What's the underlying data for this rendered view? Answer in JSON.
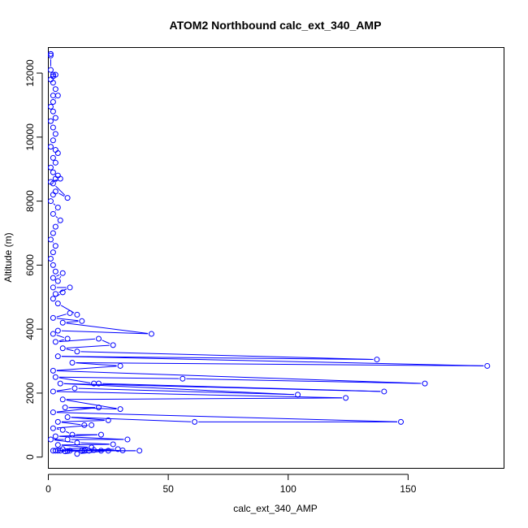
{
  "chart_data": {
    "type": "line",
    "title": "ATOM2 Northbound calc_ext_340_AMP",
    "xlabel": "calc_ext_340_AMP",
    "ylabel": "Altitude (m)",
    "xlim": [
      0,
      190
    ],
    "ylim": [
      -350,
      12800
    ],
    "x_ticks": [
      0,
      50,
      100,
      150
    ],
    "y_ticks": [
      0,
      2000,
      4000,
      6000,
      8000,
      10000,
      12000
    ],
    "grid": false,
    "series_color": "#0000ff",
    "marker": "open-circle",
    "points": [
      [
        1,
        12600
      ],
      [
        1,
        12550
      ],
      [
        1,
        12100
      ],
      [
        2,
        11950
      ],
      [
        2,
        11900
      ],
      [
        3,
        11950
      ],
      [
        1,
        11800
      ],
      [
        2,
        11700
      ],
      [
        3,
        11500
      ],
      [
        2,
        11300
      ],
      [
        4,
        11300
      ],
      [
        2,
        11100
      ],
      [
        1,
        10950
      ],
      [
        2,
        10800
      ],
      [
        3,
        10600
      ],
      [
        1,
        10500
      ],
      [
        2,
        10300
      ],
      [
        3,
        10100
      ],
      [
        2,
        9900
      ],
      [
        1,
        9700
      ],
      [
        3,
        9600
      ],
      [
        4,
        9500
      ],
      [
        2,
        9350
      ],
      [
        3,
        9200
      ],
      [
        1,
        9050
      ],
      [
        2,
        8900
      ],
      [
        4,
        8800
      ],
      [
        3,
        8700
      ],
      [
        1,
        8600
      ],
      [
        5,
        8700
      ],
      [
        2,
        8550
      ],
      [
        8,
        8100
      ],
      [
        3,
        8300
      ],
      [
        2,
        8200
      ],
      [
        1,
        8000
      ],
      [
        4,
        7800
      ],
      [
        2,
        7600
      ],
      [
        5,
        7400
      ],
      [
        3,
        7200
      ],
      [
        2,
        7000
      ],
      [
        1,
        6800
      ],
      [
        3,
        6600
      ],
      [
        2,
        6400
      ],
      [
        1,
        6200
      ],
      [
        2,
        6000
      ],
      [
        3,
        5800
      ],
      [
        2,
        5600
      ],
      [
        6,
        5750
      ],
      [
        4,
        5500
      ],
      [
        2,
        5300
      ],
      [
        9,
        5300
      ],
      [
        3,
        5100
      ],
      [
        6,
        5150
      ],
      [
        2,
        4950
      ],
      [
        4,
        4800
      ],
      [
        12,
        4450
      ],
      [
        9,
        4500
      ],
      [
        2,
        4350
      ],
      [
        14,
        4250
      ],
      [
        6,
        4200
      ],
      [
        43,
        3850
      ],
      [
        4,
        3950
      ],
      [
        2,
        3850
      ],
      [
        8,
        3700
      ],
      [
        3,
        3600
      ],
      [
        21,
        3700
      ],
      [
        27,
        3500
      ],
      [
        6,
        3400
      ],
      [
        12,
        3300
      ],
      [
        137,
        3050
      ],
      [
        4,
        3150
      ],
      [
        183,
        2850
      ],
      [
        10,
        2950
      ],
      [
        30,
        2850
      ],
      [
        2,
        2700
      ],
      [
        157,
        2300
      ],
      [
        56,
        2450
      ],
      [
        3,
        2500
      ],
      [
        19,
        2300
      ],
      [
        21,
        2300
      ],
      [
        140,
        2050
      ],
      [
        5,
        2300
      ],
      [
        104,
        1950
      ],
      [
        11,
        2150
      ],
      [
        2,
        2050
      ],
      [
        124,
        1850
      ],
      [
        6,
        1800
      ],
      [
        30,
        1500
      ],
      [
        7,
        1550
      ],
      [
        21,
        1550
      ],
      [
        2,
        1400
      ],
      [
        147,
        1100
      ],
      [
        61,
        1100
      ],
      [
        8,
        1250
      ],
      [
        25,
        1150
      ],
      [
        4,
        1100
      ],
      [
        15,
        1000
      ],
      [
        18,
        1000
      ],
      [
        2,
        900
      ],
      [
        6,
        850
      ],
      [
        10,
        700
      ],
      [
        22,
        700
      ],
      [
        3,
        650
      ],
      [
        33,
        550
      ],
      [
        8,
        550
      ],
      [
        1,
        550
      ],
      [
        12,
        450
      ],
      [
        27,
        400
      ],
      [
        4,
        380
      ],
      [
        18,
        300
      ],
      [
        6,
        250
      ],
      [
        14,
        200
      ],
      [
        38,
        200
      ],
      [
        3,
        200
      ],
      [
        22,
        200
      ],
      [
        9,
        200
      ],
      [
        29,
        250
      ],
      [
        5,
        200
      ],
      [
        17,
        200
      ],
      [
        12,
        100
      ],
      [
        25,
        200
      ],
      [
        4,
        200
      ],
      [
        19,
        220
      ],
      [
        8,
        190
      ],
      [
        31,
        210
      ],
      [
        2,
        200
      ],
      [
        15,
        200
      ],
      [
        7,
        180
      ]
    ]
  }
}
